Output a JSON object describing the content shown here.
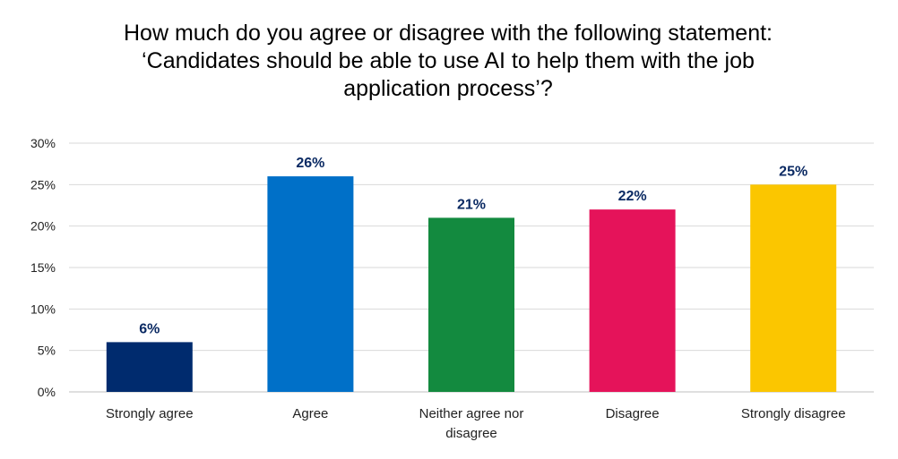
{
  "chart_data": {
    "type": "bar",
    "title_lines": [
      "How much do you agree or disagree with the following statement:",
      "‘Candidates should be able to use AI to help them with the job",
      "application process’?"
    ],
    "categories": [
      "Strongly agree",
      "Agree",
      "Neither agree nor disagree",
      "Disagree",
      "Strongly disagree"
    ],
    "category_label_lines": [
      [
        "Strongly agree"
      ],
      [
        "Agree"
      ],
      [
        "Neither agree nor",
        "disagree"
      ],
      [
        "Disagree"
      ],
      [
        "Strongly disagree"
      ]
    ],
    "values": [
      6,
      26,
      21,
      22,
      25
    ],
    "data_labels": [
      "6%",
      "26%",
      "21%",
      "22%",
      "25%"
    ],
    "colors": [
      "#002b6e",
      "#0070c8",
      "#138a3f",
      "#e5135a",
      "#fbc600"
    ],
    "y_ticks": [
      0,
      5,
      10,
      15,
      20,
      25,
      30
    ],
    "y_tick_labels": [
      "0%",
      "5%",
      "10%",
      "15%",
      "20%",
      "25%",
      "30%"
    ],
    "ylim": [
      0,
      30
    ],
    "grid": true,
    "legend": "none",
    "xlabel": "",
    "ylabel": ""
  }
}
